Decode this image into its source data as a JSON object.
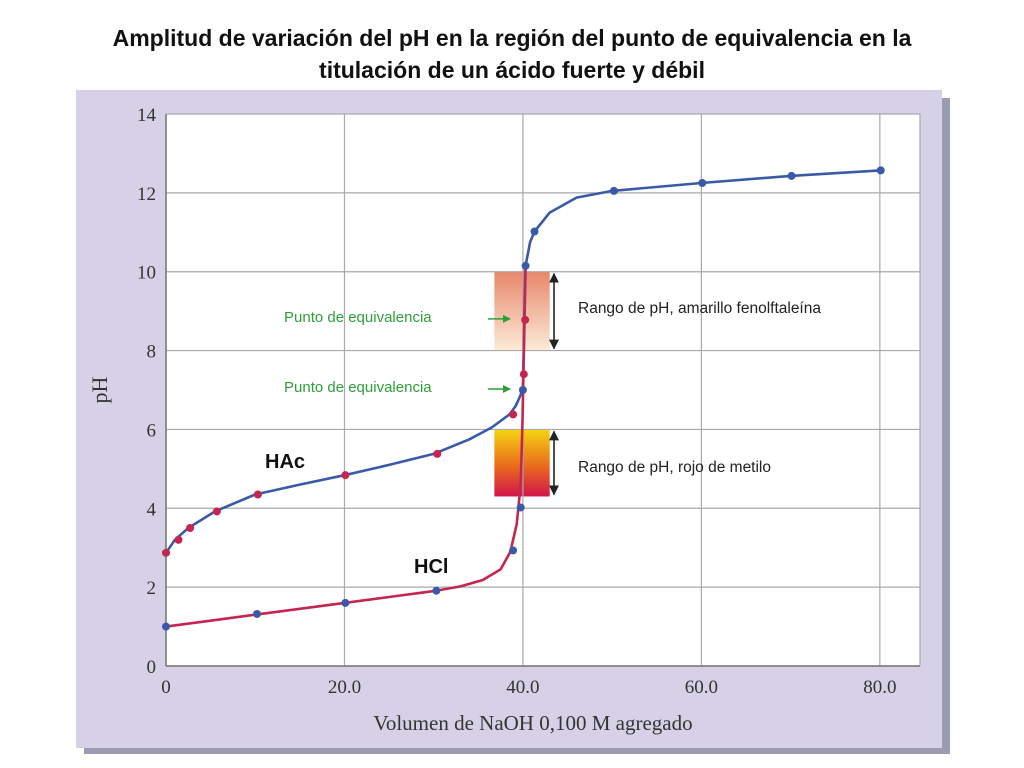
{
  "title_line1": "Amplitud de variación del pH en la región del punto de equivalencia en la",
  "title_line2": "titulación de un ácido fuerte y débil",
  "colors": {
    "hac_line": "#3a5aa8",
    "hcl_line": "#c4264f",
    "equivalence_text": "#2e9e3a",
    "panel": "#d6d1e7",
    "grid": "#a9a9a9"
  },
  "chart_data": {
    "type": "line",
    "title": "",
    "xlabel": "Volumen de NaOH 0,100 M agregado",
    "ylabel": "pH",
    "xlim": [
      0,
      84.5
    ],
    "ylim": [
      0,
      14
    ],
    "x_ticks": [
      0,
      20,
      40,
      60,
      80
    ],
    "x_tick_labels": [
      "0",
      "20.0",
      "40.0",
      "60.0",
      "80.0"
    ],
    "y_ticks": [
      0,
      2,
      4,
      6,
      8,
      10,
      12,
      14
    ],
    "y_tick_labels": [
      "0",
      "2",
      "4",
      "6",
      "8",
      "10",
      "12",
      "14"
    ],
    "grid": true,
    "series": [
      {
        "name": "HAc",
        "curve": [
          [
            0,
            2.87
          ],
          [
            1,
            3.2
          ],
          [
            2.5,
            3.5
          ],
          [
            5.5,
            3.92
          ],
          [
            10,
            4.35
          ],
          [
            15,
            4.6
          ],
          [
            20,
            4.84
          ],
          [
            25,
            5.1
          ],
          [
            30,
            5.38
          ],
          [
            34,
            5.75
          ],
          [
            36.5,
            6.05
          ],
          [
            38.5,
            6.38
          ],
          [
            39.2,
            6.6
          ],
          [
            39.7,
            6.85
          ],
          [
            40,
            7.05
          ],
          [
            40.15,
            8.5
          ],
          [
            40.3,
            10.15
          ],
          [
            40.8,
            10.75
          ],
          [
            41.3,
            11.02
          ],
          [
            43,
            11.5
          ],
          [
            46,
            11.88
          ],
          [
            50,
            12.05
          ],
          [
            60,
            12.25
          ],
          [
            70,
            12.43
          ],
          [
            80,
            12.57
          ]
        ],
        "points": [
          [
            0,
            2.87
          ],
          [
            1.4,
            3.2
          ],
          [
            2.7,
            3.5
          ],
          [
            5.7,
            3.92
          ],
          [
            10.3,
            4.35
          ],
          [
            20.1,
            4.84
          ],
          [
            30.4,
            5.38
          ],
          [
            38.9,
            6.38
          ],
          [
            40,
            7.0
          ],
          [
            40.3,
            10.15
          ],
          [
            41.3,
            11.02
          ],
          [
            50.2,
            12.05
          ],
          [
            60.1,
            12.25
          ],
          [
            70.1,
            12.43
          ],
          [
            80.1,
            12.57
          ]
        ],
        "point_colors": [
          "hcl",
          "hcl",
          "hcl",
          "hcl",
          "hcl",
          "hcl",
          "hcl",
          "hcl",
          "hac",
          "hac",
          "hac",
          "hac",
          "hac",
          "hac",
          "hac"
        ]
      },
      {
        "name": "HCl",
        "curve": [
          [
            0,
            1.0
          ],
          [
            5,
            1.15
          ],
          [
            10,
            1.3
          ],
          [
            15,
            1.45
          ],
          [
            20,
            1.6
          ],
          [
            25,
            1.75
          ],
          [
            30,
            1.9
          ],
          [
            33,
            2.02
          ],
          [
            35.5,
            2.18
          ],
          [
            37.5,
            2.45
          ],
          [
            38.6,
            2.9
          ],
          [
            39.3,
            3.6
          ],
          [
            39.75,
            4.6
          ],
          [
            39.95,
            6.2
          ],
          [
            40.05,
            7.4
          ],
          [
            40.15,
            8.78
          ],
          [
            40.25,
            10.1
          ]
        ],
        "points": [
          [
            0,
            1.0
          ],
          [
            10.2,
            1.32
          ],
          [
            20.1,
            1.6
          ],
          [
            30.3,
            1.91
          ],
          [
            38.9,
            2.93
          ],
          [
            39.75,
            4.02
          ],
          [
            40.1,
            7.4
          ],
          [
            40.25,
            8.78
          ]
        ],
        "point_colors": [
          "hac",
          "hac",
          "hac",
          "hac",
          "hac",
          "hac",
          "hcl",
          "hcl"
        ]
      }
    ],
    "annotations": [
      {
        "text": "Punto de equivalencia",
        "points_to": [
          40.2,
          8.78
        ]
      },
      {
        "text": "Punto de equivalencia",
        "points_to": [
          40.0,
          7.0
        ]
      },
      {
        "text": "Rango de pH, amarillo fenolftaleína",
        "range": [
          8.0,
          10.0
        ],
        "x_range": [
          36.8,
          43.0
        ]
      },
      {
        "text": "Rango de pH, rojo de metilo",
        "range": [
          4.3,
          6.0
        ],
        "x_range": [
          36.8,
          43.0
        ]
      }
    ]
  }
}
